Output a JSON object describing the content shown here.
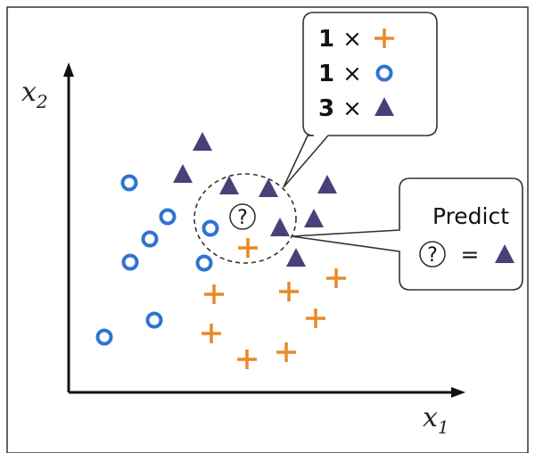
{
  "axes": {
    "x_label": "x",
    "x_sub": "1",
    "y_label": "x",
    "y_sub": "2"
  },
  "query_label": "?",
  "legend": {
    "colors": {
      "plus": "#e8892b",
      "circle": "#2f74d0",
      "triangle": "#4b3f7a"
    },
    "nearest_counts": [
      {
        "count": "1",
        "times": "×",
        "shape": "plus"
      },
      {
        "count": "1",
        "times": "×",
        "shape": "circle"
      },
      {
        "count": "3",
        "times": "×",
        "shape": "triangle"
      }
    ]
  },
  "predict": {
    "title": "Predict",
    "query": "?",
    "equals": "=",
    "result_shape": "triangle"
  },
  "points": {
    "circle": [
      [
        145,
        205
      ],
      [
        188,
        243
      ],
      [
        168,
        268
      ],
      [
        146,
        294
      ],
      [
        236,
        256
      ],
      [
        229,
        295
      ],
      [
        173,
        359
      ],
      [
        117,
        378
      ]
    ],
    "triangle": [
      [
        227,
        160
      ],
      [
        205,
        196
      ],
      [
        257,
        209
      ],
      [
        301,
        212
      ],
      [
        367,
        208
      ],
      [
        352,
        246
      ],
      [
        314,
        256
      ],
      [
        332,
        290
      ]
    ],
    "plus": [
      [
        278,
        278
      ],
      [
        240,
        330
      ],
      [
        324,
        327
      ],
      [
        377,
        312
      ],
      [
        237,
        374
      ],
      [
        354,
        357
      ],
      [
        277,
        403
      ],
      [
        321,
        395
      ]
    ]
  }
}
